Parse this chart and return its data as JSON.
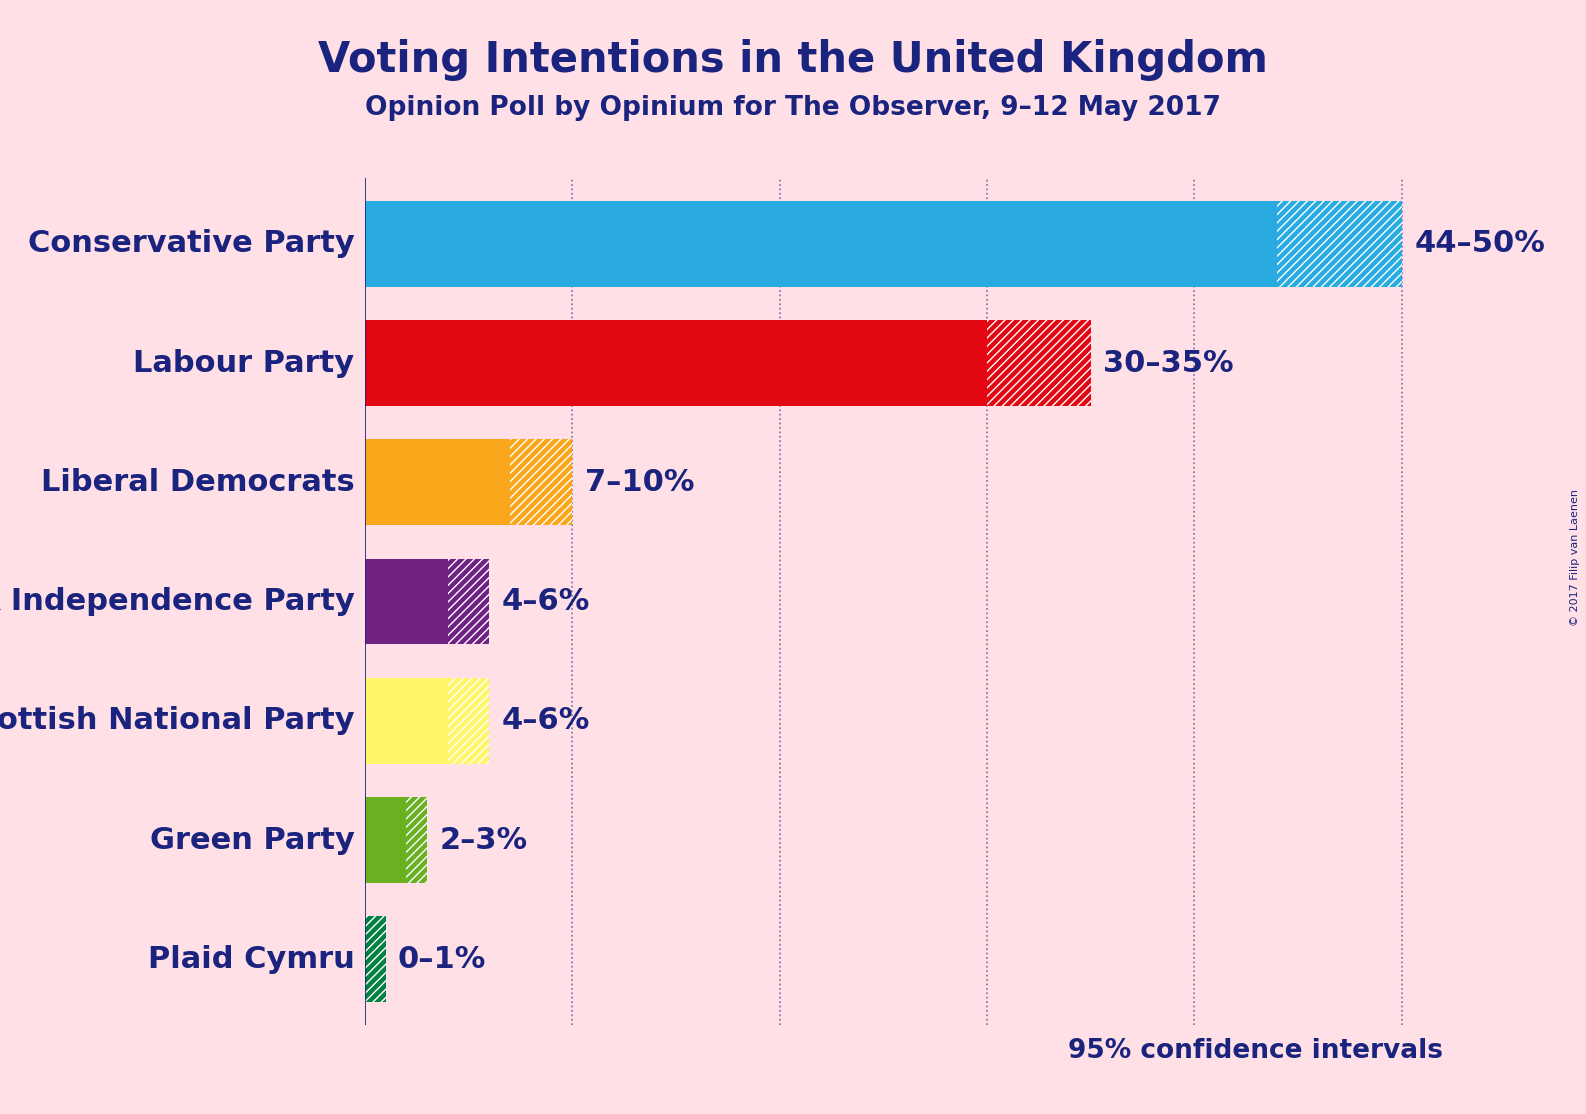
{
  "title": "Voting Intentions in the United Kingdom",
  "subtitle": "Opinion Poll by Opinium for The Observer, 9–12 May 2017",
  "copyright": "© 2017 Filip van Laenen",
  "parties": [
    "Conservative Party",
    "Labour Party",
    "Liberal Democrats",
    "UK Independence Party",
    "Scottish National Party",
    "Green Party",
    "Plaid Cymru"
  ],
  "low": [
    44,
    30,
    7,
    4,
    4,
    2,
    0
  ],
  "high": [
    50,
    35,
    10,
    6,
    6,
    3,
    1
  ],
  "labels": [
    "44–50%",
    "30–35%",
    "7–10%",
    "4–6%",
    "4–6%",
    "2–3%",
    "0–1%"
  ],
  "colors": [
    "#29ABE2",
    "#E30613",
    "#FAA61A",
    "#702283",
    "#FFF568",
    "#6AB023",
    "#008142"
  ],
  "background_color": "#FFE0E6",
  "text_color": "#1a237e",
  "confidence_text": "95% confidence intervals",
  "xlim": [
    0,
    52
  ],
  "title_fontsize": 30,
  "subtitle_fontsize": 19,
  "label_fontsize": 22,
  "party_fontsize": 22,
  "confidence_fontsize": 19,
  "copyright_fontsize": 8
}
